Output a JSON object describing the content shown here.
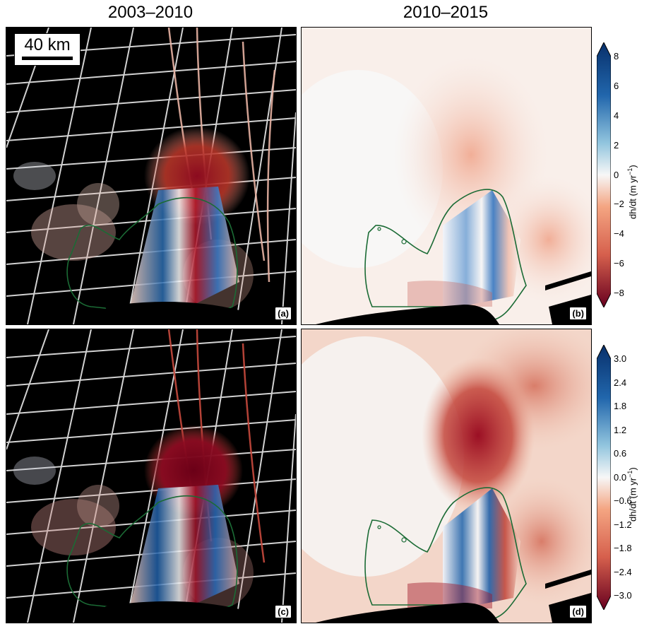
{
  "titles": {
    "left": "2003–2010",
    "right": "2010–2015"
  },
  "scale_bar": "40 km",
  "panels": {
    "a": "(a)",
    "b": "(b)",
    "c": "(c)",
    "d": "(d)"
  },
  "colorbar_top": {
    "label_main": "dh/dt (m yr",
    "label_sup": "−1",
    "label_end": ")",
    "ticks": [
      "8",
      "6",
      "4",
      "2",
      "0",
      "−2",
      "−4",
      "−6",
      "−8"
    ]
  },
  "colorbar_bottom": {
    "label_main": "dh/dt (m yr",
    "label_sup": "−1",
    "label_end": ")",
    "ticks": [
      "3.0",
      "2.4",
      "1.8",
      "1.2",
      "0.6",
      "0.0",
      "−0.6",
      "−1.2",
      "−1.8",
      "−2.4",
      "−3.0"
    ]
  },
  "colors": {
    "blue_dark": "#08306b",
    "blue": "#2166ac",
    "white": "#f7f7f7",
    "red": "#b2182b",
    "red_dark": "#67001f",
    "outline": "#1b6b35"
  }
}
